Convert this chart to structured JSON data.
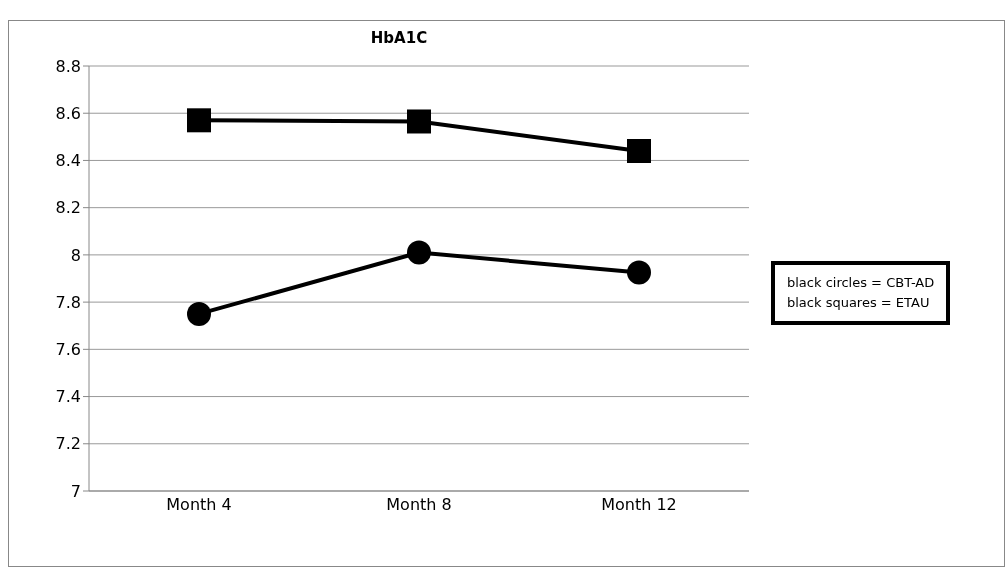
{
  "chart_data": {
    "type": "line",
    "title": "HbA1C",
    "categories": [
      "Month 4",
      "Month 8",
      "Month 12"
    ],
    "series": [
      {
        "color": "#000000",
        "marker": "circle",
        "values": [
          7.75,
          8.01,
          7.925
        ]
      },
      {
        "color": "#000000",
        "marker": "square",
        "values": [
          8.57,
          8.565,
          8.44
        ]
      }
    ],
    "ylim": [
      7,
      8.8
    ],
    "yticks": [
      7,
      7.2,
      7.4,
      7.6,
      7.8,
      8,
      8.2,
      8.4,
      8.6,
      8.8
    ],
    "grid": "y",
    "annotations": [
      "black circles = CBT-AD",
      "black squares = ETAU"
    ]
  }
}
